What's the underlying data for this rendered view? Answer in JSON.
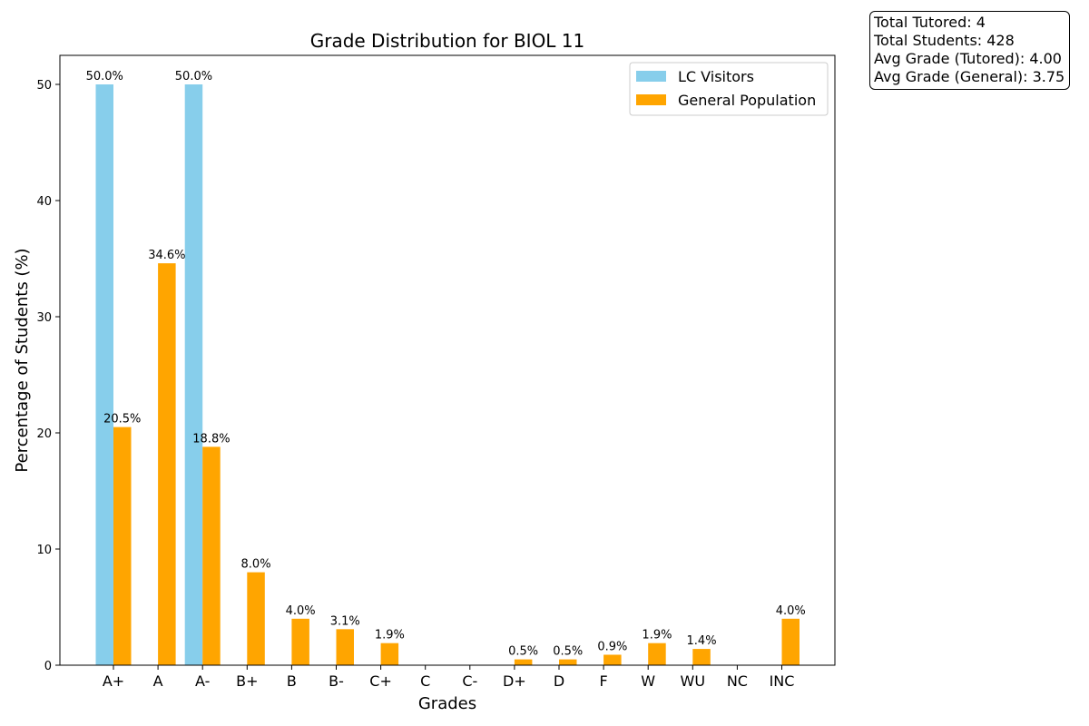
{
  "chart_data": {
    "type": "bar",
    "title": "Grade Distribution for BIOL 11",
    "xlabel": "Grades",
    "ylabel": "Percentage of Students (%)",
    "ylim": [
      0,
      52.5
    ],
    "yticks": [
      0,
      10,
      20,
      30,
      40,
      50
    ],
    "grid": false,
    "legend_position": "top-right",
    "categories": [
      "A+",
      "A",
      "A-",
      "B+",
      "B",
      "B-",
      "C+",
      "C",
      "C-",
      "D+",
      "D",
      "F",
      "W",
      "WU",
      "NC",
      "INC"
    ],
    "series": [
      {
        "name": "LC Visitors",
        "color": "#87CEEB",
        "values": [
          50.0,
          0,
          50.0,
          0,
          0,
          0,
          0,
          0,
          0,
          0,
          0,
          0,
          0,
          0,
          0,
          0
        ],
        "labels": [
          "50.0%",
          "",
          "50.0%",
          "",
          "",
          "",
          "",
          "",
          "",
          "",
          "",
          "",
          "",
          "",
          "",
          ""
        ]
      },
      {
        "name": "General Population",
        "color": "#FFA500",
        "values": [
          20.5,
          34.6,
          18.8,
          8.0,
          4.0,
          3.1,
          1.9,
          0,
          0,
          0.5,
          0.5,
          0.9,
          1.9,
          1.4,
          0,
          4.0
        ],
        "labels": [
          "20.5%",
          "34.6%",
          "18.8%",
          "8.0%",
          "4.0%",
          "3.1%",
          "1.9%",
          "",
          "",
          "0.5%",
          "0.5%",
          "0.9%",
          "1.9%",
          "1.4%",
          "",
          "4.0%"
        ]
      }
    ]
  },
  "stats": {
    "total_tutored": "Total Tutored: 4",
    "total_students": "Total Students: 428",
    "avg_tutored": "Avg Grade (Tutored): 4.00",
    "avg_general": "Avg Grade (General): 3.75"
  }
}
